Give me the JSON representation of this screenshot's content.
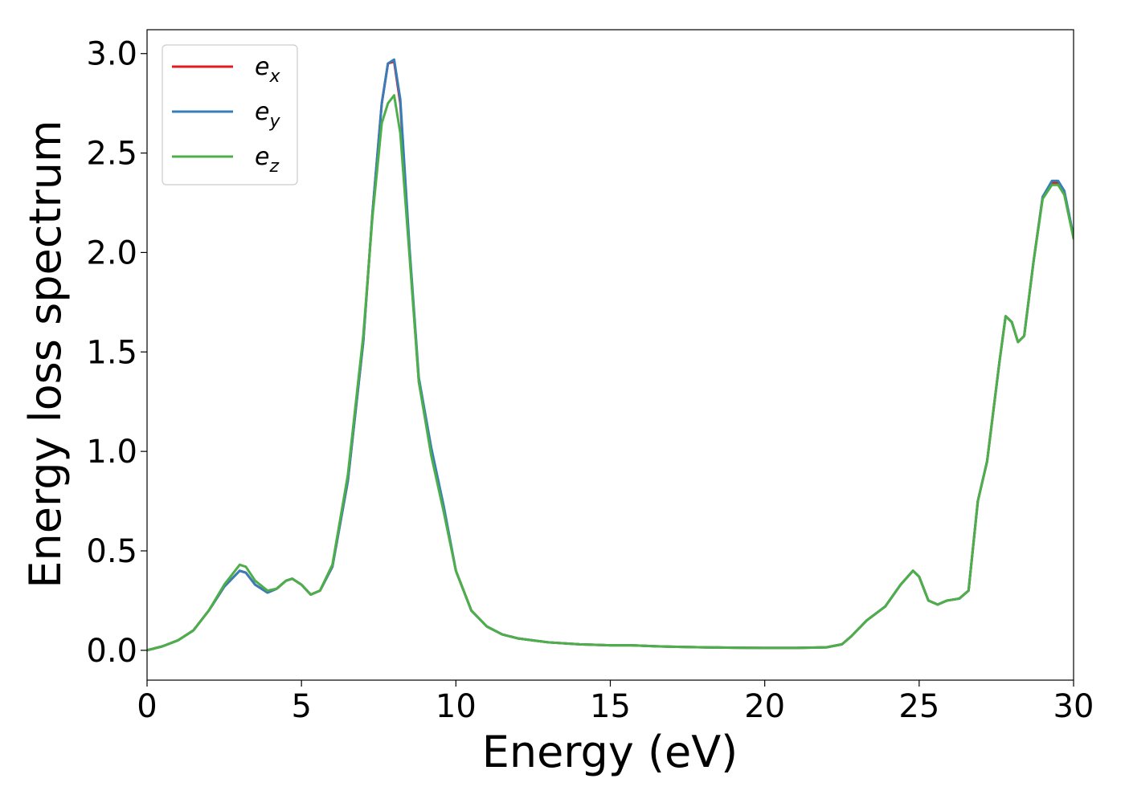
{
  "chart_data": {
    "type": "line",
    "title": "",
    "xlabel": "Energy (eV)",
    "ylabel": "Energy loss spectrum",
    "xlim": [
      0,
      30
    ],
    "ylim": [
      -0.15,
      3.12
    ],
    "xticks": [
      0,
      5,
      10,
      15,
      20,
      25,
      30
    ],
    "xtick_labels": [
      "0",
      "5",
      "10",
      "15",
      "20",
      "25",
      "30"
    ],
    "yticks": [
      0.0,
      0.5,
      1.0,
      1.5,
      2.0,
      2.5,
      3.0
    ],
    "ytick_labels": [
      "0.0",
      "0.5",
      "1.0",
      "1.5",
      "2.0",
      "2.5",
      "3.0"
    ],
    "grid": false,
    "legend_position": "top-left",
    "series": [
      {
        "name": "e_x",
        "legend_base": "e",
        "legend_sub": "x",
        "color": "#e41a1c",
        "x": [
          0,
          0.5,
          1.0,
          1.5,
          2.0,
          2.5,
          3.0,
          3.2,
          3.5,
          3.9,
          4.2,
          4.5,
          4.7,
          5.0,
          5.3,
          5.6,
          6.0,
          6.5,
          7.0,
          7.3,
          7.6,
          7.8,
          8.0,
          8.2,
          8.5,
          8.8,
          9.2,
          9.6,
          10.0,
          10.5,
          11.0,
          11.5,
          12.0,
          12.5,
          13.0,
          14.0,
          15.0,
          15.7,
          16.5,
          17.0,
          18.0,
          19.0,
          20.0,
          21.0,
          22.0,
          22.5,
          22.8,
          23.3,
          23.9,
          24.4,
          24.8,
          25.0,
          25.3,
          25.6,
          25.9,
          26.3,
          26.6,
          26.9,
          27.2,
          27.6,
          27.8,
          28.0,
          28.2,
          28.4,
          28.7,
          29.0,
          29.3,
          29.5,
          29.7,
          30.0
        ],
        "y": [
          0.0,
          0.02,
          0.05,
          0.1,
          0.2,
          0.32,
          0.4,
          0.39,
          0.33,
          0.29,
          0.31,
          0.35,
          0.36,
          0.33,
          0.28,
          0.3,
          0.42,
          0.85,
          1.55,
          2.2,
          2.75,
          2.95,
          2.96,
          2.75,
          2.0,
          1.35,
          1.0,
          0.72,
          0.4,
          0.2,
          0.12,
          0.08,
          0.06,
          0.05,
          0.04,
          0.03,
          0.025,
          0.025,
          0.02,
          0.018,
          0.015,
          0.013,
          0.012,
          0.012,
          0.015,
          0.03,
          0.07,
          0.15,
          0.22,
          0.33,
          0.4,
          0.37,
          0.25,
          0.23,
          0.25,
          0.26,
          0.3,
          0.75,
          0.95,
          1.45,
          1.68,
          1.65,
          1.55,
          1.58,
          1.95,
          2.28,
          2.35,
          2.35,
          2.3,
          2.08
        ]
      },
      {
        "name": "e_y",
        "legend_base": "e",
        "legend_sub": "y",
        "color": "#377eb8",
        "x": [
          0,
          0.5,
          1.0,
          1.5,
          2.0,
          2.5,
          3.0,
          3.2,
          3.5,
          3.9,
          4.2,
          4.5,
          4.7,
          5.0,
          5.3,
          5.6,
          6.0,
          6.5,
          7.0,
          7.3,
          7.6,
          7.8,
          8.0,
          8.2,
          8.5,
          8.8,
          9.2,
          9.6,
          10.0,
          10.5,
          11.0,
          11.5,
          12.0,
          12.5,
          13.0,
          14.0,
          15.0,
          15.7,
          16.5,
          17.0,
          18.0,
          19.0,
          20.0,
          21.0,
          22.0,
          22.5,
          22.8,
          23.3,
          23.9,
          24.4,
          24.8,
          25.0,
          25.3,
          25.6,
          25.9,
          26.3,
          26.6,
          26.9,
          27.2,
          27.6,
          27.8,
          28.0,
          28.2,
          28.4,
          28.7,
          29.0,
          29.3,
          29.5,
          29.7,
          30.0
        ],
        "y": [
          0.0,
          0.02,
          0.05,
          0.1,
          0.2,
          0.32,
          0.4,
          0.39,
          0.33,
          0.29,
          0.31,
          0.35,
          0.36,
          0.33,
          0.28,
          0.3,
          0.42,
          0.85,
          1.55,
          2.2,
          2.75,
          2.95,
          2.97,
          2.77,
          2.02,
          1.37,
          1.02,
          0.73,
          0.4,
          0.2,
          0.12,
          0.08,
          0.06,
          0.05,
          0.04,
          0.03,
          0.025,
          0.025,
          0.02,
          0.018,
          0.015,
          0.013,
          0.012,
          0.012,
          0.015,
          0.03,
          0.07,
          0.15,
          0.22,
          0.33,
          0.4,
          0.37,
          0.25,
          0.23,
          0.25,
          0.26,
          0.3,
          0.75,
          0.95,
          1.45,
          1.68,
          1.65,
          1.55,
          1.58,
          1.95,
          2.28,
          2.36,
          2.36,
          2.31,
          2.08
        ]
      },
      {
        "name": "e_z",
        "legend_base": "e",
        "legend_sub": "z",
        "color": "#4daf4a",
        "x": [
          0,
          0.5,
          1.0,
          1.5,
          2.0,
          2.5,
          3.0,
          3.2,
          3.5,
          3.9,
          4.2,
          4.5,
          4.7,
          5.0,
          5.3,
          5.6,
          6.0,
          6.5,
          7.0,
          7.3,
          7.6,
          7.8,
          8.0,
          8.2,
          8.5,
          8.8,
          9.2,
          9.6,
          10.0,
          10.5,
          11.0,
          11.5,
          12.0,
          12.5,
          13.0,
          14.0,
          15.0,
          15.7,
          16.5,
          17.0,
          18.0,
          19.0,
          20.0,
          21.0,
          22.0,
          22.5,
          22.8,
          23.3,
          23.9,
          24.4,
          24.8,
          25.0,
          25.3,
          25.6,
          25.9,
          26.3,
          26.6,
          26.9,
          27.2,
          27.6,
          27.8,
          28.0,
          28.2,
          28.4,
          28.7,
          29.0,
          29.3,
          29.5,
          29.7,
          30.0
        ],
        "y": [
          0.0,
          0.02,
          0.05,
          0.1,
          0.2,
          0.33,
          0.43,
          0.42,
          0.35,
          0.3,
          0.31,
          0.35,
          0.36,
          0.33,
          0.28,
          0.3,
          0.43,
          0.88,
          1.58,
          2.18,
          2.65,
          2.75,
          2.79,
          2.6,
          1.98,
          1.35,
          0.98,
          0.7,
          0.4,
          0.2,
          0.12,
          0.08,
          0.06,
          0.05,
          0.04,
          0.03,
          0.025,
          0.025,
          0.02,
          0.018,
          0.015,
          0.013,
          0.012,
          0.012,
          0.015,
          0.03,
          0.07,
          0.15,
          0.22,
          0.33,
          0.4,
          0.37,
          0.25,
          0.23,
          0.25,
          0.26,
          0.3,
          0.75,
          0.95,
          1.45,
          1.68,
          1.65,
          1.55,
          1.58,
          1.95,
          2.27,
          2.34,
          2.34,
          2.29,
          2.07
        ]
      }
    ]
  }
}
